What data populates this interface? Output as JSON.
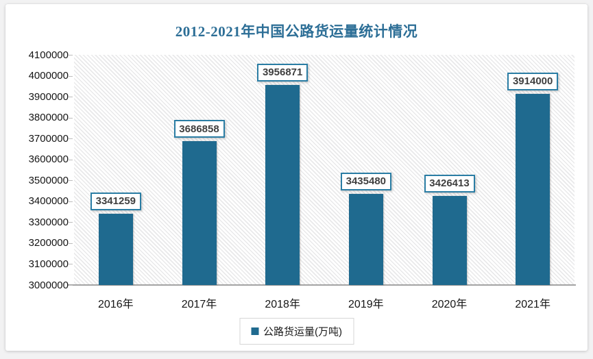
{
  "chart": {
    "title": "2012-2021年中国公路货运量统计情况",
    "legend_label": "公路货运量(万吨)",
    "colors": {
      "bar": "#1f6a8f",
      "title": "#2c6e96",
      "value_box_border": "#2a7da4",
      "axis_line": "#a3a3a3"
    }
  },
  "chart_data": {
    "type": "bar",
    "title": "2012-2021年中国公路货运量统计情况",
    "categories": [
      "2016年",
      "2017年",
      "2018年",
      "2019年",
      "2020年",
      "2021年"
    ],
    "values": [
      3341259,
      3686858,
      3956871,
      3435480,
      3426413,
      3914000
    ],
    "data_labels": [
      "3341259",
      "3686858",
      "3956871",
      "3435480",
      "3426413",
      "3914000"
    ],
    "xlabel": "",
    "ylabel": "",
    "ylim": [
      3000000,
      4100000
    ],
    "ytick_step": 100000,
    "ytick_labels": [
      "4100000",
      "4000000",
      "3900000",
      "3800000",
      "3700000",
      "3600000",
      "3500000",
      "3400000",
      "3300000",
      "3200000",
      "3100000",
      "3000000"
    ],
    "legend": [
      "公路货运量(万吨)"
    ],
    "legend_position": "bottom",
    "grid": false,
    "plot_background": "diagonal-hatch"
  }
}
